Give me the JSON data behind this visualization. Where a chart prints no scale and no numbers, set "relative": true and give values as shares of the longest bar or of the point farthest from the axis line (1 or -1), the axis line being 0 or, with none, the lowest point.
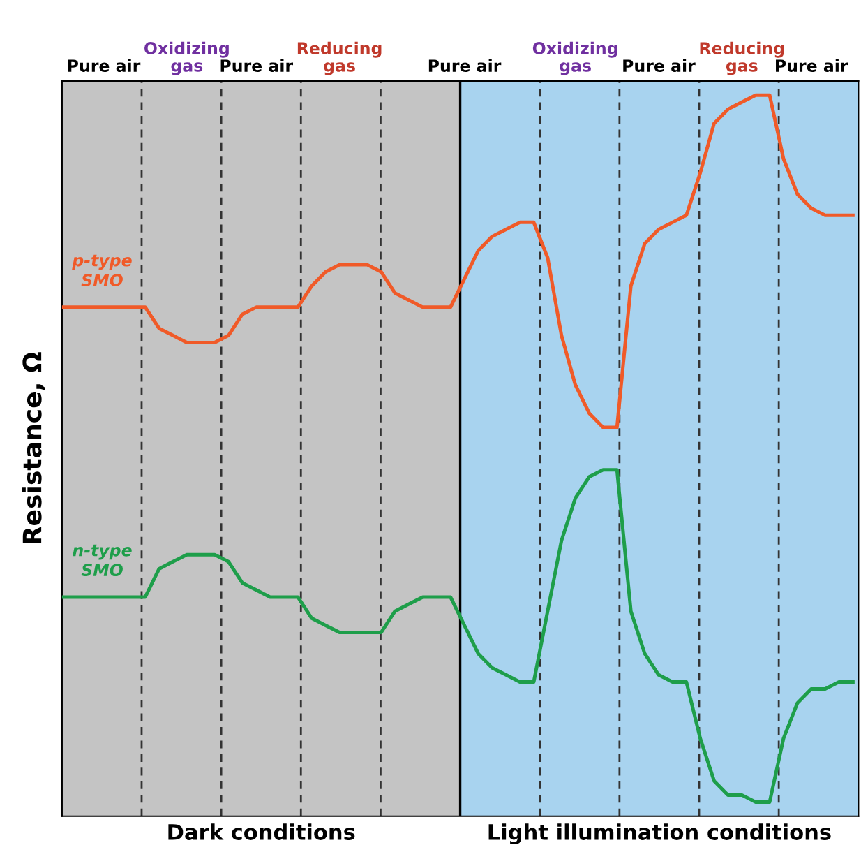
{
  "chart_data": {
    "type": "line",
    "relative": true,
    "ylabel": "Resistance, Ω",
    "legend": false,
    "grid": false,
    "marker": "none",
    "line_style": "solid",
    "categories": [
      null,
      null,
      null,
      "Pure air",
      null,
      null,
      null,
      null,
      null,
      "Oxidizing gas",
      null,
      null,
      null,
      null,
      "Pure air",
      null,
      null,
      null,
      null,
      null,
      "Reducing gas",
      null,
      null,
      null,
      null,
      null,
      null,
      null,
      null,
      "Pure air",
      null,
      null,
      null,
      null,
      null,
      null,
      null,
      "Oxidizing gas",
      null,
      null,
      null,
      null,
      null,
      "Pure air",
      null,
      null,
      null,
      null,
      null,
      "Reducing gas",
      null,
      null,
      null,
      null,
      "Pure air",
      null,
      null,
      null
    ],
    "series": [
      {
        "name": "p-type SMO",
        "color": "#f05a28",
        "values": [
          0.7,
          0.7,
          0.7,
          0.7,
          0.7,
          0.7,
          0.7,
          0.67,
          0.66,
          0.65,
          0.65,
          0.65,
          0.66,
          0.69,
          0.7,
          0.7,
          0.7,
          0.7,
          0.73,
          0.75,
          0.76,
          0.76,
          0.76,
          0.75,
          0.72,
          0.71,
          0.7,
          0.7,
          0.7,
          0.74,
          0.78,
          0.8,
          0.81,
          0.82,
          0.82,
          0.77,
          0.66,
          0.59,
          0.55,
          0.53,
          0.53,
          0.73,
          0.79,
          0.81,
          0.82,
          0.83,
          0.89,
          0.96,
          0.98,
          0.99,
          1.0,
          1.0,
          0.91,
          0.86,
          0.84,
          0.83,
          0.83,
          0.83
        ]
      },
      {
        "name": "n-type SMO",
        "color": "#1e9e4a",
        "values": [
          0.29,
          0.29,
          0.29,
          0.29,
          0.29,
          0.29,
          0.29,
          0.33,
          0.34,
          0.35,
          0.35,
          0.35,
          0.34,
          0.31,
          0.3,
          0.29,
          0.29,
          0.29,
          0.26,
          0.25,
          0.24,
          0.24,
          0.24,
          0.24,
          0.27,
          0.28,
          0.29,
          0.29,
          0.29,
          0.25,
          0.21,
          0.19,
          0.18,
          0.17,
          0.17,
          0.27,
          0.37,
          0.43,
          0.46,
          0.47,
          0.47,
          0.27,
          0.21,
          0.18,
          0.17,
          0.17,
          0.09,
          0.03,
          0.01,
          0.01,
          0.0,
          0.0,
          0.09,
          0.14,
          0.16,
          0.16,
          0.17,
          0.17
        ]
      }
    ],
    "annotations": [
      "Dark conditions",
      "Light illumination conditions"
    ]
  }
}
